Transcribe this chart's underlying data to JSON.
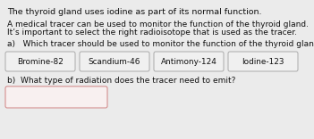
{
  "title_line": "The thyroid gland uses iodine as part of its normal function.",
  "body_line1": "A medical tracer can be used to monitor the function of the thyroid gland.",
  "body_line2": "It’s important to select the right radioisotope that is used as the tracer.",
  "question_a": "a)   Which tracer should be used to monitor the function of the thyroid gland?",
  "options": [
    "Bromine-82",
    "Scandium-46",
    "Antimony-124",
    "Iodine-123"
  ],
  "question_b": "b)  What type of radiation does the tracer need to emit?",
  "bg_color": "#ebebeb",
  "box_facecolor": "#f0f0f0",
  "box_edgecolor": "#aaaaaa",
  "answer_box_edgecolor": "#d08080",
  "answer_box_facecolor": "#f8f0f0",
  "text_color": "#111111",
  "fs_title": 6.8,
  "fs_body": 6.5,
  "fs_option": 6.4,
  "fs_qb": 6.5
}
